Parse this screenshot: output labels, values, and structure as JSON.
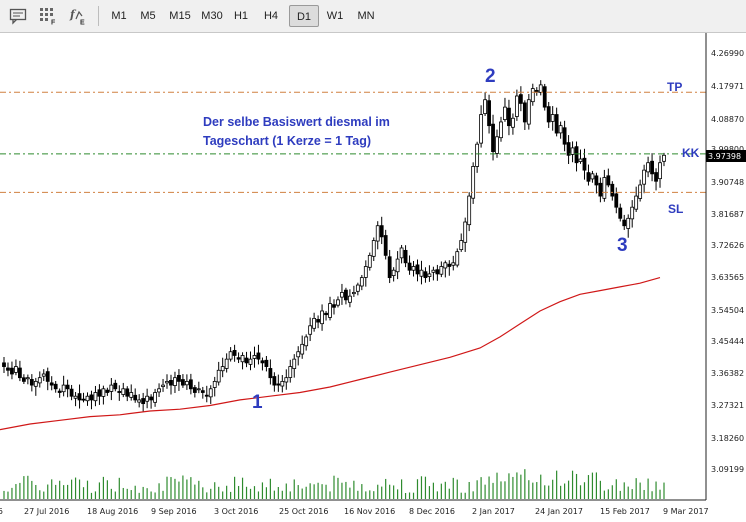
{
  "toolbar": {
    "icons": [
      "chart-text-icon",
      "grid-f-icon",
      "indicators-e-icon"
    ],
    "timeframes": [
      "M1",
      "M5",
      "M15",
      "M30",
      "H1",
      "H4",
      "D1",
      "W1",
      "MN"
    ],
    "active_timeframe": "D1"
  },
  "chart_data": {
    "type": "candlestick",
    "price_axis": {
      "ticks": [
        "4.26990",
        "4.17971",
        "4.08870",
        "3.99800",
        "3.90748",
        "3.81687",
        "3.72626",
        "3.63565",
        "3.54504",
        "3.45444",
        "3.36382",
        "3.27321",
        "3.18260",
        "3.09199"
      ],
      "range": [
        3.04,
        4.3
      ],
      "current_price": "3.97398"
    },
    "time_axis": {
      "ticks": [
        "27 Jul 2016",
        "18 Aug 2016",
        "9 Sep 2016",
        "3 Oct 2016",
        "25 Oct 2016",
        "16 Nov 2016",
        "8 Dec 2016",
        "2 Jan 2017",
        "24 Jan 2017",
        "15 Feb 2017",
        "9 Mar 2017"
      ],
      "first_partial": "5"
    },
    "levels": [
      {
        "label": "TP",
        "price": 4.14,
        "color": "#d08040"
      },
      {
        "label": "KK",
        "price": 3.97398,
        "color": "#2e8b2e"
      },
      {
        "label": "SL",
        "price": 3.87,
        "color": "#d08040"
      }
    ],
    "annotations": {
      "text_line1": "Der selbe Basiswert diesmal im",
      "text_line2": "Tageschart (1 Kerze = 1 Tag)",
      "wave1": "1",
      "wave2": "2",
      "wave3": "3"
    },
    "candles_close": [
      3.4,
      3.39,
      3.38,
      3.4,
      3.37,
      3.36,
      3.37,
      3.35,
      3.36,
      3.37,
      3.38,
      3.36,
      3.35,
      3.34,
      3.33,
      3.35,
      3.34,
      3.32,
      3.32,
      3.31,
      3.31,
      3.32,
      3.31,
      3.33,
      3.32,
      3.34,
      3.33,
      3.35,
      3.34,
      3.33,
      3.34,
      3.32,
      3.33,
      3.31,
      3.31,
      3.3,
      3.32,
      3.31,
      3.33,
      3.34,
      3.35,
      3.36,
      3.35,
      3.37,
      3.36,
      3.35,
      3.36,
      3.34,
      3.33,
      3.34,
      3.33,
      3.32,
      3.34,
      3.36,
      3.39,
      3.4,
      3.42,
      3.44,
      3.43,
      3.42,
      3.43,
      3.41,
      3.42,
      3.43,
      3.42,
      3.41,
      3.4,
      3.37,
      3.35,
      3.35,
      3.36,
      3.37,
      3.4,
      3.42,
      3.44,
      3.46,
      3.48,
      3.51,
      3.53,
      3.52,
      3.55,
      3.54,
      3.57,
      3.56,
      3.58,
      3.6,
      3.58,
      3.59,
      3.6,
      3.62,
      3.64,
      3.67,
      3.7,
      3.74,
      3.78,
      3.75,
      3.7,
      3.64,
      3.66,
      3.69,
      3.72,
      3.68,
      3.66,
      3.67,
      3.65,
      3.66,
      3.64,
      3.65,
      3.66,
      3.65,
      3.67,
      3.68,
      3.67,
      3.68,
      3.71,
      3.74,
      3.79,
      3.86,
      3.94,
      4.0,
      4.08,
      4.12,
      4.05,
      3.98,
      4.02,
      4.06,
      4.1,
      4.05,
      4.07,
      4.13,
      4.11,
      4.06,
      4.12,
      4.15,
      4.14,
      4.16,
      4.1,
      4.06,
      4.08,
      4.03,
      4.05,
      4.0,
      3.97,
      3.99,
      3.95,
      3.96,
      3.93,
      3.9,
      3.92,
      3.89,
      3.86,
      3.91,
      3.89,
      3.86,
      3.83,
      3.8,
      3.78,
      3.8,
      3.83,
      3.86,
      3.89,
      3.93,
      3.95,
      3.92,
      3.9,
      3.95,
      3.97
    ],
    "ma_line": [
      [
        0,
        3.23
      ],
      [
        30,
        3.245
      ],
      [
        60,
        3.255
      ],
      [
        90,
        3.265
      ],
      [
        120,
        3.27
      ],
      [
        150,
        3.28
      ],
      [
        180,
        3.285
      ],
      [
        210,
        3.295
      ],
      [
        240,
        3.31
      ],
      [
        270,
        3.32
      ],
      [
        300,
        3.33
      ],
      [
        330,
        3.345
      ],
      [
        360,
        3.365
      ],
      [
        390,
        3.385
      ],
      [
        420,
        3.405
      ],
      [
        450,
        3.425
      ],
      [
        480,
        3.45
      ],
      [
        500,
        3.48
      ],
      [
        520,
        3.515
      ],
      [
        540,
        3.55
      ],
      [
        560,
        3.575
      ],
      [
        580,
        3.595
      ],
      [
        600,
        3.605
      ],
      [
        620,
        3.615
      ],
      [
        640,
        3.625
      ],
      [
        660,
        3.64
      ]
    ]
  }
}
